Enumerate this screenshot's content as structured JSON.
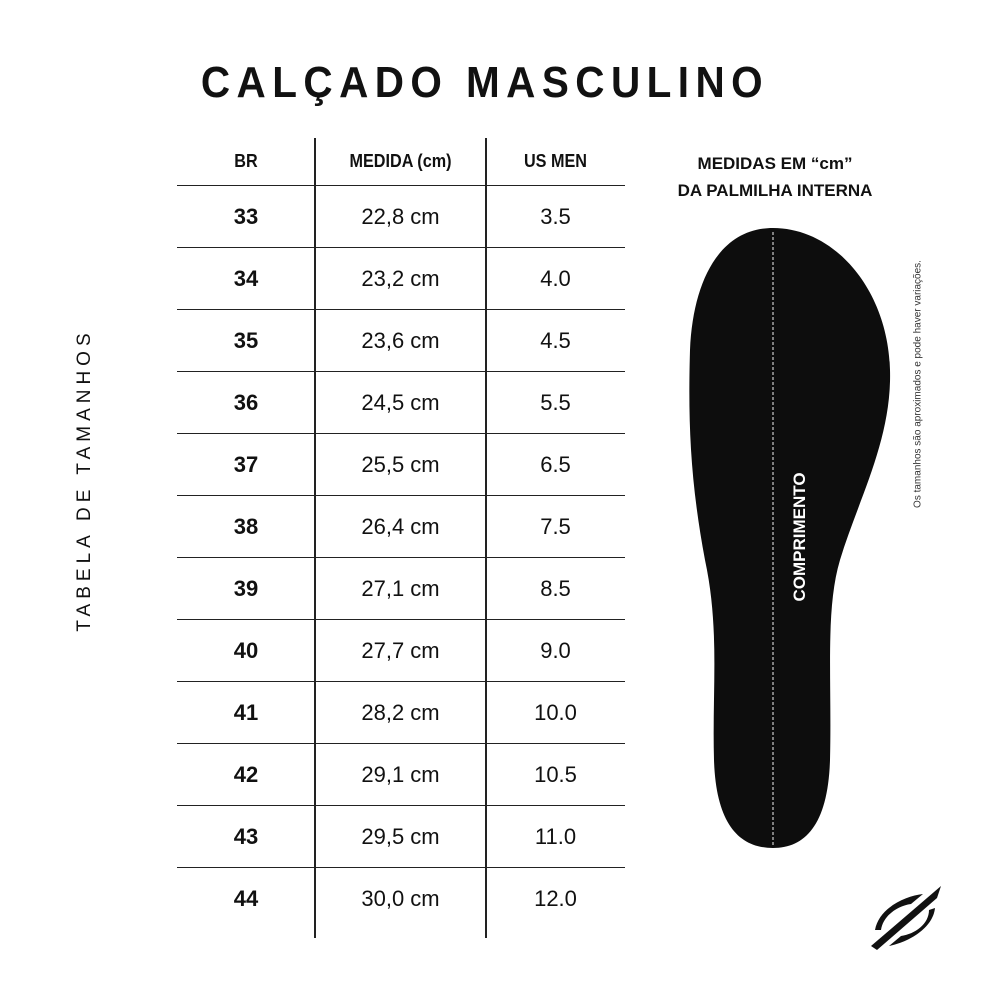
{
  "title": "CALÇADO MASCULINO",
  "side_label": "TABELA DE TAMANHOS",
  "table": {
    "headers": [
      "BR",
      "MEDIDA (cm)",
      "US MEN"
    ],
    "rows": [
      [
        "33",
        "22,8 cm",
        "3.5"
      ],
      [
        "34",
        "23,2 cm",
        "4.0"
      ],
      [
        "35",
        "23,6 cm",
        "4.5"
      ],
      [
        "36",
        "24,5 cm",
        "5.5"
      ],
      [
        "37",
        "25,5 cm",
        "6.5"
      ],
      [
        "38",
        "26,4 cm",
        "7.5"
      ],
      [
        "39",
        "27,1 cm",
        "8.5"
      ],
      [
        "40",
        "27,7 cm",
        "9.0"
      ],
      [
        "41",
        "28,2 cm",
        "10.0"
      ],
      [
        "42",
        "29,1 cm",
        "10.5"
      ],
      [
        "43",
        "29,5 cm",
        "11.0"
      ],
      [
        "44",
        "30,0 cm",
        "12.0"
      ]
    ]
  },
  "measure": {
    "line1": "MEDIDAS EM “cm”",
    "line2": "DA PALMILHA INTERNA"
  },
  "insole_label": "COMPRIMENTO",
  "note": "Os tamanhos são aproximados e pode haver variações.",
  "colors": {
    "insole": "#0d0d0d",
    "text": "#111111"
  }
}
